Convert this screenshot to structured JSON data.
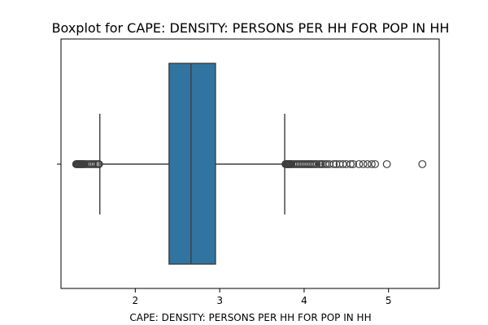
{
  "chart_data": {
    "type": "box",
    "title": "Boxplot for CAPE: DENSITY: PERSONS PER HH FOR POP IN HH",
    "xlabel": "CAPE: DENSITY: PERSONS PER HH FOR POP IN HH",
    "ylabel": "",
    "orientation": "horizontal",
    "xlim": [
      1.12,
      5.6
    ],
    "xticks": [
      2,
      3,
      4,
      5
    ],
    "grid": false,
    "box_color": "#3274a1",
    "box": {
      "whisker_low": 1.58,
      "q1": 2.4,
      "median": 2.66,
      "q3": 2.95,
      "whisker_high": 3.77
    },
    "outliers": [
      1.3,
      1.31,
      1.32,
      1.33,
      1.34,
      1.35,
      1.36,
      1.37,
      1.38,
      1.39,
      1.4,
      1.42,
      1.44,
      1.46,
      1.48,
      1.5,
      1.52,
      1.54,
      1.56,
      1.57,
      3.78,
      3.79,
      3.8,
      3.81,
      3.82,
      3.83,
      3.84,
      3.85,
      3.87,
      3.89,
      3.91,
      3.93,
      3.95,
      3.97,
      3.99,
      4.01,
      4.03,
      4.05,
      4.07,
      4.09,
      4.11,
      4.13,
      4.15,
      4.18,
      4.2,
      4.22,
      4.25,
      4.27,
      4.3,
      4.35,
      4.38,
      4.42,
      4.46,
      4.5,
      4.55,
      4.58,
      4.65,
      4.7,
      4.75,
      4.8,
      4.84,
      4.98,
      5.4
    ]
  }
}
